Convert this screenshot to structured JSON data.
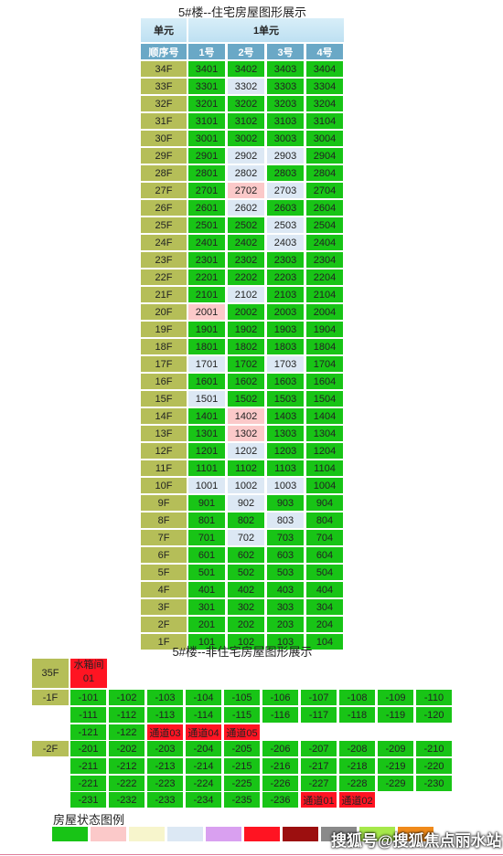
{
  "residential": {
    "title": "5#楼--住宅房屋图形展示",
    "unit_label": "单元",
    "unit_name": "1单元",
    "seq_label": "顺序号",
    "columns": [
      "1号",
      "2号",
      "3号",
      "4号"
    ],
    "floors": [
      {
        "label": "34F",
        "rooms": [
          "3401",
          "3402",
          "3403",
          "3404"
        ],
        "status": [
          "green",
          "green",
          "green",
          "green"
        ]
      },
      {
        "label": "33F",
        "rooms": [
          "3301",
          "3302",
          "3303",
          "3304"
        ],
        "status": [
          "green",
          "lblue",
          "green",
          "green"
        ]
      },
      {
        "label": "32F",
        "rooms": [
          "3201",
          "3202",
          "3203",
          "3204"
        ],
        "status": [
          "green",
          "green",
          "green",
          "green"
        ]
      },
      {
        "label": "31F",
        "rooms": [
          "3101",
          "3102",
          "3103",
          "3104"
        ],
        "status": [
          "green",
          "green",
          "green",
          "green"
        ]
      },
      {
        "label": "30F",
        "rooms": [
          "3001",
          "3002",
          "3003",
          "3004"
        ],
        "status": [
          "green",
          "green",
          "green",
          "green"
        ]
      },
      {
        "label": "29F",
        "rooms": [
          "2901",
          "2902",
          "2903",
          "2904"
        ],
        "status": [
          "green",
          "lblue",
          "lblue",
          "green"
        ]
      },
      {
        "label": "28F",
        "rooms": [
          "2801",
          "2802",
          "2803",
          "2804"
        ],
        "status": [
          "green",
          "lblue",
          "green",
          "green"
        ]
      },
      {
        "label": "27F",
        "rooms": [
          "2701",
          "2702",
          "2703",
          "2704"
        ],
        "status": [
          "green",
          "pink",
          "lblue",
          "green"
        ]
      },
      {
        "label": "26F",
        "rooms": [
          "2601",
          "2602",
          "2603",
          "2604"
        ],
        "status": [
          "green",
          "lblue",
          "green",
          "green"
        ]
      },
      {
        "label": "25F",
        "rooms": [
          "2501",
          "2502",
          "2503",
          "2504"
        ],
        "status": [
          "green",
          "green",
          "lblue",
          "green"
        ]
      },
      {
        "label": "24F",
        "rooms": [
          "2401",
          "2402",
          "2403",
          "2404"
        ],
        "status": [
          "green",
          "green",
          "lblue",
          "green"
        ]
      },
      {
        "label": "23F",
        "rooms": [
          "2301",
          "2302",
          "2303",
          "2304"
        ],
        "status": [
          "green",
          "green",
          "green",
          "green"
        ]
      },
      {
        "label": "22F",
        "rooms": [
          "2201",
          "2202",
          "2203",
          "2204"
        ],
        "status": [
          "green",
          "green",
          "green",
          "green"
        ]
      },
      {
        "label": "21F",
        "rooms": [
          "2101",
          "2102",
          "2103",
          "2104"
        ],
        "status": [
          "green",
          "lblue",
          "green",
          "green"
        ]
      },
      {
        "label": "20F",
        "rooms": [
          "2001",
          "2002",
          "2003",
          "2004"
        ],
        "status": [
          "pink",
          "green",
          "green",
          "green"
        ]
      },
      {
        "label": "19F",
        "rooms": [
          "1901",
          "1902",
          "1903",
          "1904"
        ],
        "status": [
          "green",
          "green",
          "green",
          "green"
        ]
      },
      {
        "label": "18F",
        "rooms": [
          "1801",
          "1802",
          "1803",
          "1804"
        ],
        "status": [
          "green",
          "green",
          "green",
          "green"
        ]
      },
      {
        "label": "17F",
        "rooms": [
          "1701",
          "1702",
          "1703",
          "1704"
        ],
        "status": [
          "lblue",
          "green",
          "lblue",
          "green"
        ]
      },
      {
        "label": "16F",
        "rooms": [
          "1601",
          "1602",
          "1603",
          "1604"
        ],
        "status": [
          "green",
          "green",
          "green",
          "green"
        ]
      },
      {
        "label": "15F",
        "rooms": [
          "1501",
          "1502",
          "1503",
          "1504"
        ],
        "status": [
          "lblue",
          "green",
          "green",
          "green"
        ]
      },
      {
        "label": "14F",
        "rooms": [
          "1401",
          "1402",
          "1403",
          "1404"
        ],
        "status": [
          "green",
          "pink",
          "green",
          "green"
        ]
      },
      {
        "label": "13F",
        "rooms": [
          "1301",
          "1302",
          "1303",
          "1304"
        ],
        "status": [
          "green",
          "pink",
          "green",
          "green"
        ]
      },
      {
        "label": "12F",
        "rooms": [
          "1201",
          "1202",
          "1203",
          "1204"
        ],
        "status": [
          "green",
          "lblue",
          "green",
          "green"
        ]
      },
      {
        "label": "11F",
        "rooms": [
          "1101",
          "1102",
          "1103",
          "1104"
        ],
        "status": [
          "green",
          "green",
          "green",
          "green"
        ]
      },
      {
        "label": "10F",
        "rooms": [
          "1001",
          "1002",
          "1003",
          "1004"
        ],
        "status": [
          "lblue",
          "lblue",
          "lblue",
          "green"
        ]
      },
      {
        "label": "9F",
        "rooms": [
          "901",
          "902",
          "903",
          "904"
        ],
        "status": [
          "green",
          "lblue",
          "green",
          "green"
        ]
      },
      {
        "label": "8F",
        "rooms": [
          "801",
          "802",
          "803",
          "804"
        ],
        "status": [
          "green",
          "green",
          "lblue",
          "green"
        ]
      },
      {
        "label": "7F",
        "rooms": [
          "701",
          "702",
          "703",
          "704"
        ],
        "status": [
          "green",
          "lblue",
          "green",
          "green"
        ]
      },
      {
        "label": "6F",
        "rooms": [
          "601",
          "602",
          "603",
          "604"
        ],
        "status": [
          "green",
          "green",
          "green",
          "green"
        ]
      },
      {
        "label": "5F",
        "rooms": [
          "501",
          "502",
          "503",
          "504"
        ],
        "status": [
          "green",
          "green",
          "green",
          "green"
        ]
      },
      {
        "label": "4F",
        "rooms": [
          "401",
          "402",
          "403",
          "404"
        ],
        "status": [
          "green",
          "green",
          "green",
          "green"
        ]
      },
      {
        "label": "3F",
        "rooms": [
          "301",
          "302",
          "303",
          "304"
        ],
        "status": [
          "green",
          "green",
          "green",
          "green"
        ]
      },
      {
        "label": "2F",
        "rooms": [
          "201",
          "202",
          "203",
          "204"
        ],
        "status": [
          "green",
          "green",
          "green",
          "green"
        ]
      },
      {
        "label": "1F",
        "rooms": [
          "101",
          "102",
          "103",
          "104"
        ],
        "status": [
          "green",
          "green",
          "green",
          "green"
        ]
      }
    ]
  },
  "non_residential": {
    "title": "5#楼--非住宅房屋图形展示",
    "floor_35": {
      "label": "35F",
      "room_line1": "水箱间",
      "room_line2": "01"
    },
    "basement_1": {
      "label": "-1F",
      "rows": [
        [
          "-101",
          "-102",
          "-103",
          "-104",
          "-105",
          "-106",
          "-107",
          "-108",
          "-109",
          "-110"
        ],
        [
          "-111",
          "-112",
          "-113",
          "-114",
          "-115",
          "-116",
          "-117",
          "-118",
          "-119",
          "-120"
        ],
        [
          "-121",
          "-122",
          "通道03",
          "通道04",
          "通道05"
        ]
      ]
    },
    "basement_2": {
      "label": "-2F",
      "rows": [
        [
          "-201",
          "-202",
          "-203",
          "-204",
          "-205",
          "-206",
          "-207",
          "-208",
          "-209",
          "-210"
        ],
        [
          "-211",
          "-212",
          "-213",
          "-214",
          "-215",
          "-216",
          "-217",
          "-218",
          "-219",
          "-220"
        ],
        [
          "-221",
          "-222",
          "-223",
          "-224",
          "-225",
          "-226",
          "-227",
          "-228",
          "-229",
          "-230"
        ],
        [
          "-231",
          "-232",
          "-233",
          "-234",
          "-235",
          "-236",
          "通道01",
          "通道02"
        ]
      ]
    }
  },
  "legend": {
    "title": "房屋状态图例",
    "colors": [
      "#18c416",
      "#fbc9c9",
      "#f7f5cc",
      "#dce8f4",
      "#d9a0f0",
      "#ff1422",
      "#9c0f0f",
      "#8a8a8a",
      "#a6e84a",
      "#f08a1a"
    ]
  },
  "status_colors": {
    "green": "#18c416",
    "pink": "#fbc9c9",
    "lblue": "#dce8f4",
    "red": "#ff1422"
  },
  "watermark": "搜狐号@搜狐焦点丽水站"
}
